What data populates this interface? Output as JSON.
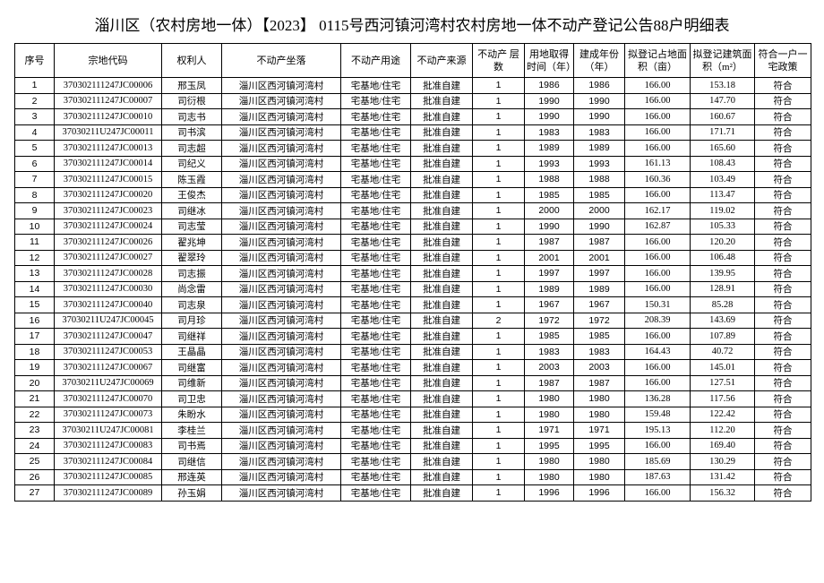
{
  "header": {
    "title": "淄川区（农村房地一体）【2023】 0115号西河镇河湾村农村房地一体不动产登记公告88户明细表"
  },
  "table": {
    "columns": [
      "序号",
      "宗地代码",
      "权利人",
      "不动产坐落",
      "不动产用途",
      "不动产来源",
      "不动产 层数",
      "用地取得时间（年）",
      "建成年份（年）",
      "拟登记占地面积（亩）",
      "拟登记建筑面积（m²）",
      "符合一户一宅政策"
    ],
    "rows": [
      [
        "1",
        "370302111247JC00006",
        "邢玉凤",
        "淄川区西河镇河湾村",
        "宅基地/住宅",
        "批准自建",
        "1",
        "1986",
        "1986",
        "166.00",
        "153.18",
        "符合"
      ],
      [
        "2",
        "370302111247JC00007",
        "司衍根",
        "淄川区西河镇河湾村",
        "宅基地/住宅",
        "批准自建",
        "1",
        "1990",
        "1990",
        "166.00",
        "147.70",
        "符合"
      ],
      [
        "3",
        "370302111247JC00010",
        "司志书",
        "淄川区西河镇河湾村",
        "宅基地/住宅",
        "批准自建",
        "1",
        "1990",
        "1990",
        "166.00",
        "160.67",
        "符合"
      ],
      [
        "4",
        "37030211U247JC00011",
        "司书滨",
        "淄川区西河镇河湾村",
        "宅基地/住宅",
        "批准自建",
        "1",
        "1983",
        "1983",
        "166.00",
        "171.71",
        "符合"
      ],
      [
        "5",
        "370302111247JC00013",
        "司志超",
        "淄川区西河镇河湾村",
        "宅基地/住宅",
        "批准自建",
        "1",
        "1989",
        "1989",
        "166.00",
        "165.60",
        "符合"
      ],
      [
        "6",
        "370302111247JC00014",
        "司纪义",
        "淄川区西河镇河湾村",
        "宅基地/住宅",
        "批准自建",
        "1",
        "1993",
        "1993",
        "161.13",
        "108.43",
        "符合"
      ],
      [
        "7",
        "370302111247JC00015",
        "陈玉霞",
        "淄川区西河镇河湾村",
        "宅基地/住宅",
        "批准自建",
        "1",
        "1988",
        "1988",
        "160.36",
        "103.49",
        "符合"
      ],
      [
        "8",
        "370302111247JC00020",
        "王俊杰",
        "淄川区西河镇河湾村",
        "宅基地/住宅",
        "批准自建",
        "1",
        "1985",
        "1985",
        "166.00",
        "113.47",
        "符合"
      ],
      [
        "9",
        "370302111247JC00023",
        "司继冰",
        "淄川区西河镇河湾村",
        "宅基地/住宅",
        "批准自建",
        "1",
        "2000",
        "2000",
        "162.17",
        "119.02",
        "符合"
      ],
      [
        "10",
        "370302111247JC00024",
        "司志莹",
        "淄川区西河镇河湾村",
        "宅基地/住宅",
        "批准自建",
        "1",
        "1990",
        "1990",
        "162.87",
        "105.33",
        "符合"
      ],
      [
        "11",
        "370302111247JC00026",
        "翟兆坤",
        "淄川区西河镇河湾村",
        "宅基地/住宅",
        "批准自建",
        "1",
        "1987",
        "1987",
        "166.00",
        "120.20",
        "符合"
      ],
      [
        "12",
        "370302111247JC00027",
        "翟翠玲",
        "淄川区西河镇河湾村",
        "宅基地/住宅",
        "批准自建",
        "1",
        "2001",
        "2001",
        "166.00",
        "106.48",
        "符合"
      ],
      [
        "13",
        "370302111247JC00028",
        "司志振",
        "淄川区西河镇河湾村",
        "宅基地/住宅",
        "批准自建",
        "1",
        "1997",
        "1997",
        "166.00",
        "139.95",
        "符合"
      ],
      [
        "14",
        "370302111247JC00030",
        "尚念雷",
        "淄川区西河镇河湾村",
        "宅基地/住宅",
        "批准自建",
        "1",
        "1989",
        "1989",
        "166.00",
        "128.91",
        "符合"
      ],
      [
        "15",
        "370302111247JC00040",
        "司志泉",
        "淄川区西河镇河湾村",
        "宅基地/住宅",
        "批准自建",
        "1",
        "1967",
        "1967",
        "150.31",
        "85.28",
        "符合"
      ],
      [
        "16",
        "37030211U247JC00045",
        "司月珍",
        "淄川区西河镇河湾村",
        "宅基地/住宅",
        "批准自建",
        "2",
        "1972",
        "1972",
        "208.39",
        "143.69",
        "符合"
      ],
      [
        "17",
        "370302111247JC00047",
        "司继祥",
        "淄川区西河镇河湾村",
        "宅基地/住宅",
        "批准自建",
        "1",
        "1985",
        "1985",
        "166.00",
        "107.89",
        "符合"
      ],
      [
        "18",
        "370302111247JC00053",
        "王晶晶",
        "淄川区西河镇河湾村",
        "宅基地/住宅",
        "批准自建",
        "1",
        "1983",
        "1983",
        "164.43",
        "40.72",
        "符合"
      ],
      [
        "19",
        "370302111247JC00067",
        "司继富",
        "淄川区西河镇河湾村",
        "宅基地/住宅",
        "批准自建",
        "1",
        "2003",
        "2003",
        "166.00",
        "145.01",
        "符合"
      ],
      [
        "20",
        "37030211U247JC00069",
        "司维新",
        "淄川区西河镇河湾村",
        "宅基地/住宅",
        "批准自建",
        "1",
        "1987",
        "1987",
        "166.00",
        "127.51",
        "符合"
      ],
      [
        "21",
        "370302111247JC00070",
        "司卫忠",
        "淄川区西河镇河湾村",
        "宅基地/住宅",
        "批准自建",
        "1",
        "1980",
        "1980",
        "136.28",
        "117.56",
        "符合"
      ],
      [
        "22",
        "370302111247JC00073",
        "朱盼水",
        "淄川区西河镇河湾村",
        "宅基地/住宅",
        "批准自建",
        "1",
        "1980",
        "1980",
        "159.48",
        "122.42",
        "符合"
      ],
      [
        "23",
        "37030211U247JC00081",
        "李桂兰",
        "淄川区西河镇河湾村",
        "宅基地/住宅",
        "批准自建",
        "1",
        "1971",
        "1971",
        "195.13",
        "112.20",
        "符合"
      ],
      [
        "24",
        "370302111247JC00083",
        "司书焉",
        "淄川区西河镇河湾村",
        "宅基地/住宅",
        "批准自建",
        "1",
        "1995",
        "1995",
        "166.00",
        "169.40",
        "符合"
      ],
      [
        "25",
        "370302111247JC00084",
        "司继信",
        "淄川区西河镇河湾村",
        "宅基地/住宅",
        "批准自建",
        "1",
        "1980",
        "1980",
        "185.69",
        "130.29",
        "符合"
      ],
      [
        "26",
        "370302111247JC00085",
        "邢连英",
        "淄川区西河镇河湾村",
        "宅基地/住宅",
        "批准自建",
        "1",
        "1980",
        "1980",
        "187.63",
        "131.42",
        "符合"
      ],
      [
        "27",
        "370302111247JC00089",
        "孙玉娟",
        "淄川区西河镇河湾村",
        "宅基地/住宅",
        "批准自建",
        "1",
        "1996",
        "1996",
        "166.00",
        "156.32",
        "符合"
      ]
    ]
  }
}
